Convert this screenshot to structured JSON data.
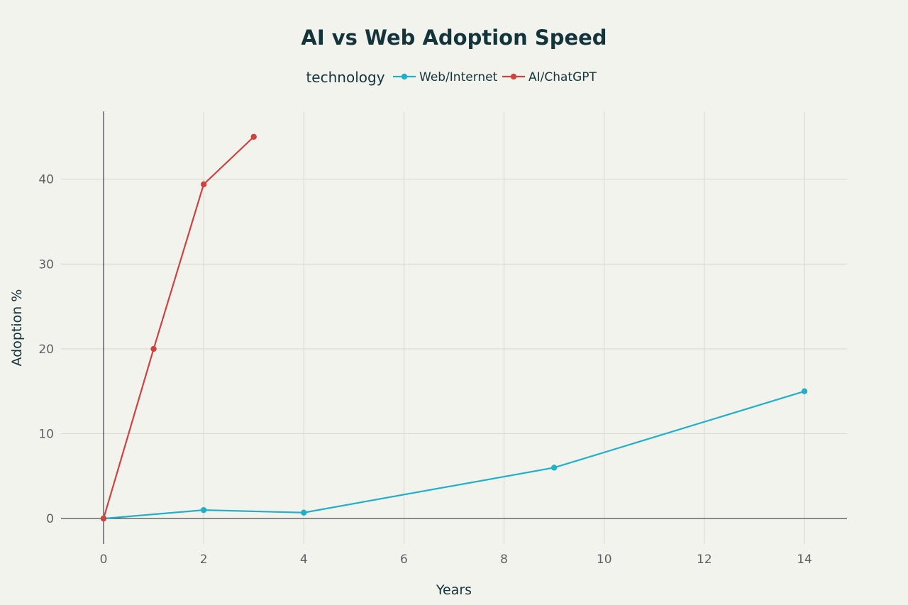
{
  "chart_data": {
    "type": "line",
    "title": "AI vs Web Adoption Speed",
    "xlabel": "Years",
    "ylabel": "Adoption %",
    "legend_title": "technology",
    "legend_position": "top-center",
    "grid": true,
    "xlim": [
      -0.85,
      14.85
    ],
    "ylim": [
      -3,
      48
    ],
    "x_ticks": [
      0,
      2,
      4,
      6,
      8,
      10,
      12,
      14
    ],
    "y_ticks": [
      0,
      10,
      20,
      30,
      40
    ],
    "series": [
      {
        "name": "Web/Internet",
        "color": "#21b0c8",
        "points": [
          [
            0,
            0
          ],
          [
            2,
            1
          ],
          [
            4,
            0.7
          ],
          [
            9,
            6
          ],
          [
            14,
            15
          ]
        ]
      },
      {
        "name": "AI/ChatGPT",
        "color": "#cc4440",
        "points": [
          [
            0,
            0
          ],
          [
            1,
            20
          ],
          [
            2,
            39.4
          ],
          [
            3,
            45
          ]
        ]
      }
    ]
  }
}
